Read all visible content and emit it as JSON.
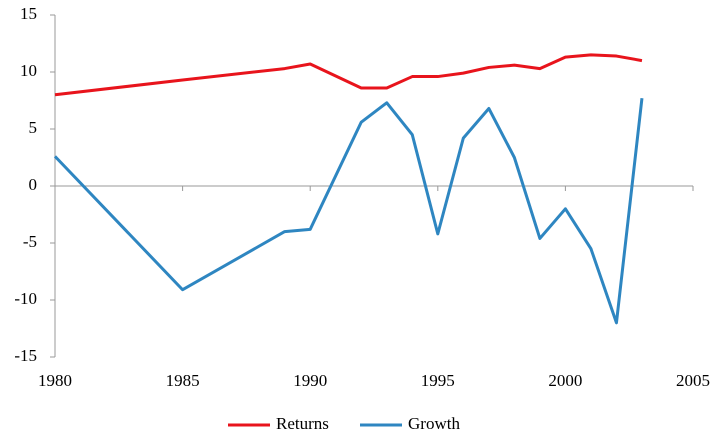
{
  "chart_data": {
    "type": "line",
    "x": [
      1980,
      1985,
      1989,
      1990,
      1992,
      1993,
      1994,
      1995,
      1996,
      1997,
      1998,
      1999,
      2000,
      2001,
      2002,
      2003
    ],
    "series": [
      {
        "name": "Returns",
        "color": "#e8141c",
        "values": [
          8.0,
          9.3,
          10.3,
          10.7,
          8.6,
          8.6,
          9.6,
          9.6,
          9.9,
          10.4,
          10.6,
          10.3,
          11.3,
          11.5,
          11.4,
          11.0
        ]
      },
      {
        "name": "Growth",
        "color": "#2e86c1",
        "values": [
          2.6,
          -9.1,
          -4.0,
          -3.8,
          5.6,
          7.3,
          4.5,
          -4.2,
          4.2,
          6.8,
          2.5,
          -4.6,
          -2.0,
          -5.5,
          -12.0,
          7.7
        ]
      }
    ],
    "xlim": [
      1980,
      2005
    ],
    "xticks": [
      1980,
      1985,
      1990,
      1995,
      2000,
      2005
    ],
    "ylim": [
      -15,
      15
    ],
    "yticks": [
      -15,
      -10,
      -5,
      0,
      5,
      10,
      15
    ],
    "legend": "bottom"
  }
}
